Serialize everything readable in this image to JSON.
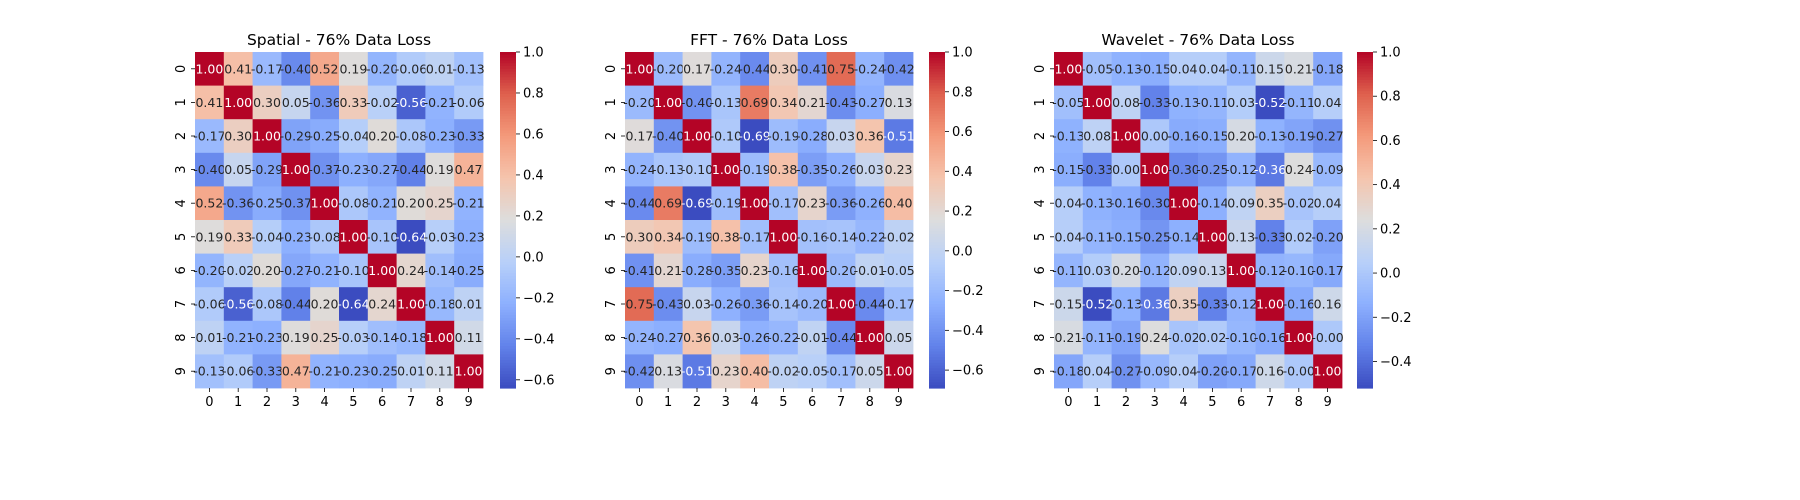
{
  "figure": {
    "background": "#ffffff"
  },
  "chart_data": [
    {
      "type": "heatmap",
      "title": "Spatial - 76% Data Loss",
      "xlabel": "",
      "ylabel": "",
      "x_categories": [
        "0",
        "1",
        "2",
        "3",
        "4",
        "5",
        "6",
        "7",
        "8",
        "9"
      ],
      "y_categories": [
        "0",
        "1",
        "2",
        "3",
        "4",
        "5",
        "6",
        "7",
        "8",
        "9"
      ],
      "colormap": "coolwarm",
      "vmin": -0.64,
      "vmax": 1.0,
      "colorbar_ticks": [
        "1.0",
        "0.8",
        "0.6",
        "0.4",
        "0.2",
        "0.0",
        "−0.2",
        "−0.4",
        "−0.6"
      ],
      "colorbar_tick_values": [
        1.0,
        0.8,
        0.6,
        0.4,
        0.2,
        0.0,
        -0.2,
        -0.4,
        -0.6
      ],
      "values": [
        [
          1.0,
          0.41,
          -0.17,
          -0.4,
          0.52,
          0.19,
          -0.2,
          -0.06,
          0.01,
          -0.13
        ],
        [
          0.41,
          1.0,
          0.3,
          0.05,
          -0.36,
          0.33,
          -0.02,
          -0.56,
          -0.21,
          -0.06
        ],
        [
          -0.17,
          0.3,
          1.0,
          -0.29,
          -0.25,
          -0.04,
          0.2,
          -0.08,
          -0.23,
          -0.33
        ],
        [
          -0.4,
          0.05,
          -0.29,
          1.0,
          -0.37,
          -0.23,
          -0.27,
          -0.44,
          0.19,
          0.47
        ],
        [
          0.52,
          -0.36,
          -0.25,
          -0.37,
          1.0,
          -0.08,
          -0.21,
          0.2,
          0.25,
          -0.21
        ],
        [
          0.19,
          0.33,
          -0.04,
          -0.23,
          -0.08,
          1.0,
          -0.1,
          -0.64,
          -0.03,
          -0.23
        ],
        [
          -0.2,
          -0.02,
          0.2,
          -0.27,
          -0.21,
          -0.1,
          1.0,
          0.24,
          -0.14,
          -0.25
        ],
        [
          -0.06,
          -0.56,
          -0.08,
          -0.44,
          0.2,
          -0.64,
          0.24,
          1.0,
          -0.18,
          0.01
        ],
        [
          0.01,
          -0.21,
          -0.23,
          0.19,
          0.25,
          -0.03,
          -0.14,
          -0.18,
          1.0,
          0.11
        ],
        [
          -0.13,
          -0.06,
          -0.33,
          0.47,
          -0.21,
          -0.23,
          -0.25,
          0.01,
          0.11,
          1.0
        ]
      ],
      "legend": "colorbar-right",
      "grid": false
    },
    {
      "type": "heatmap",
      "title": "FFT - 76% Data Loss",
      "xlabel": "",
      "ylabel": "",
      "x_categories": [
        "0",
        "1",
        "2",
        "3",
        "4",
        "5",
        "6",
        "7",
        "8",
        "9"
      ],
      "y_categories": [
        "0",
        "1",
        "2",
        "3",
        "4",
        "5",
        "6",
        "7",
        "8",
        "9"
      ],
      "colormap": "coolwarm",
      "vmin": -0.69,
      "vmax": 1.0,
      "colorbar_ticks": [
        "1.0",
        "0.8",
        "0.6",
        "0.4",
        "0.2",
        "0.0",
        "−0.2",
        "−0.4",
        "−0.6"
      ],
      "colorbar_tick_values": [
        1.0,
        0.8,
        0.6,
        0.4,
        0.2,
        0.0,
        -0.2,
        -0.4,
        -0.6
      ],
      "values": [
        [
          1.0,
          -0.2,
          0.17,
          -0.24,
          -0.44,
          0.3,
          -0.41,
          0.75,
          -0.24,
          -0.42
        ],
        [
          -0.2,
          1.0,
          -0.4,
          -0.13,
          0.69,
          0.34,
          0.21,
          -0.43,
          -0.27,
          0.13
        ],
        [
          0.17,
          -0.4,
          1.0,
          -0.1,
          -0.69,
          -0.19,
          -0.28,
          0.03,
          0.36,
          -0.51
        ],
        [
          -0.24,
          -0.13,
          -0.1,
          1.0,
          -0.19,
          0.38,
          -0.35,
          -0.26,
          0.03,
          0.23
        ],
        [
          -0.44,
          0.69,
          -0.69,
          -0.19,
          1.0,
          -0.17,
          0.23,
          -0.36,
          -0.26,
          0.4
        ],
        [
          0.3,
          0.34,
          -0.19,
          0.38,
          -0.17,
          1.0,
          -0.16,
          -0.14,
          -0.22,
          -0.02
        ],
        [
          -0.41,
          0.21,
          -0.28,
          -0.35,
          0.23,
          -0.16,
          1.0,
          -0.2,
          -0.01,
          -0.05
        ],
        [
          0.75,
          -0.43,
          0.03,
          -0.26,
          -0.36,
          -0.14,
          -0.2,
          1.0,
          -0.44,
          -0.17
        ],
        [
          -0.24,
          -0.27,
          0.36,
          0.03,
          -0.26,
          -0.22,
          -0.01,
          -0.44,
          1.0,
          0.05
        ],
        [
          -0.42,
          0.13,
          -0.51,
          0.23,
          0.4,
          -0.02,
          -0.05,
          -0.17,
          0.05,
          1.0
        ]
      ],
      "legend": "colorbar-right",
      "grid": false
    },
    {
      "type": "heatmap",
      "title": "Wavelet - 76% Data Loss",
      "xlabel": "",
      "ylabel": "",
      "x_categories": [
        "0",
        "1",
        "2",
        "3",
        "4",
        "5",
        "6",
        "7",
        "8",
        "9"
      ],
      "y_categories": [
        "0",
        "1",
        "2",
        "3",
        "4",
        "5",
        "6",
        "7",
        "8",
        "9"
      ],
      "colormap": "coolwarm",
      "vmin": -0.52,
      "vmax": 1.0,
      "colorbar_ticks": [
        "1.0",
        "0.8",
        "0.6",
        "0.4",
        "0.2",
        "0.0",
        "−0.2",
        "−0.4"
      ],
      "colorbar_tick_values": [
        1.0,
        0.8,
        0.6,
        0.4,
        0.2,
        0.0,
        -0.2,
        -0.4
      ],
      "values": [
        [
          1.0,
          -0.05,
          -0.13,
          -0.15,
          0.04,
          0.04,
          -0.11,
          0.15,
          0.21,
          -0.18
        ],
        [
          -0.05,
          1.0,
          0.08,
          -0.33,
          -0.13,
          -0.11,
          0.03,
          -0.52,
          -0.11,
          0.04
        ],
        [
          -0.13,
          0.08,
          1.0,
          0.0,
          -0.16,
          -0.15,
          0.2,
          -0.13,
          -0.19,
          -0.27
        ],
        [
          -0.15,
          -0.33,
          0.0,
          1.0,
          -0.3,
          -0.25,
          -0.12,
          -0.36,
          0.24,
          -0.09
        ],
        [
          0.04,
          -0.13,
          -0.16,
          -0.3,
          1.0,
          -0.14,
          0.09,
          0.35,
          -0.02,
          0.04
        ],
        [
          0.04,
          -0.11,
          -0.15,
          -0.25,
          -0.14,
          1.0,
          0.13,
          -0.33,
          0.02,
          -0.2
        ],
        [
          -0.11,
          0.03,
          0.2,
          -0.12,
          0.09,
          0.13,
          1.0,
          -0.12,
          -0.1,
          -0.17
        ],
        [
          0.15,
          -0.52,
          -0.13,
          -0.36,
          0.35,
          -0.33,
          -0.12,
          1.0,
          -0.16,
          0.16
        ],
        [
          0.21,
          -0.11,
          -0.19,
          0.24,
          -0.02,
          0.02,
          -0.1,
          -0.16,
          1.0,
          -0.0
        ],
        [
          -0.18,
          0.04,
          -0.27,
          -0.09,
          0.04,
          -0.2,
          -0.17,
          0.16,
          -0.0,
          1.0
        ]
      ],
      "legend": "colorbar-right",
      "grid": false
    }
  ]
}
